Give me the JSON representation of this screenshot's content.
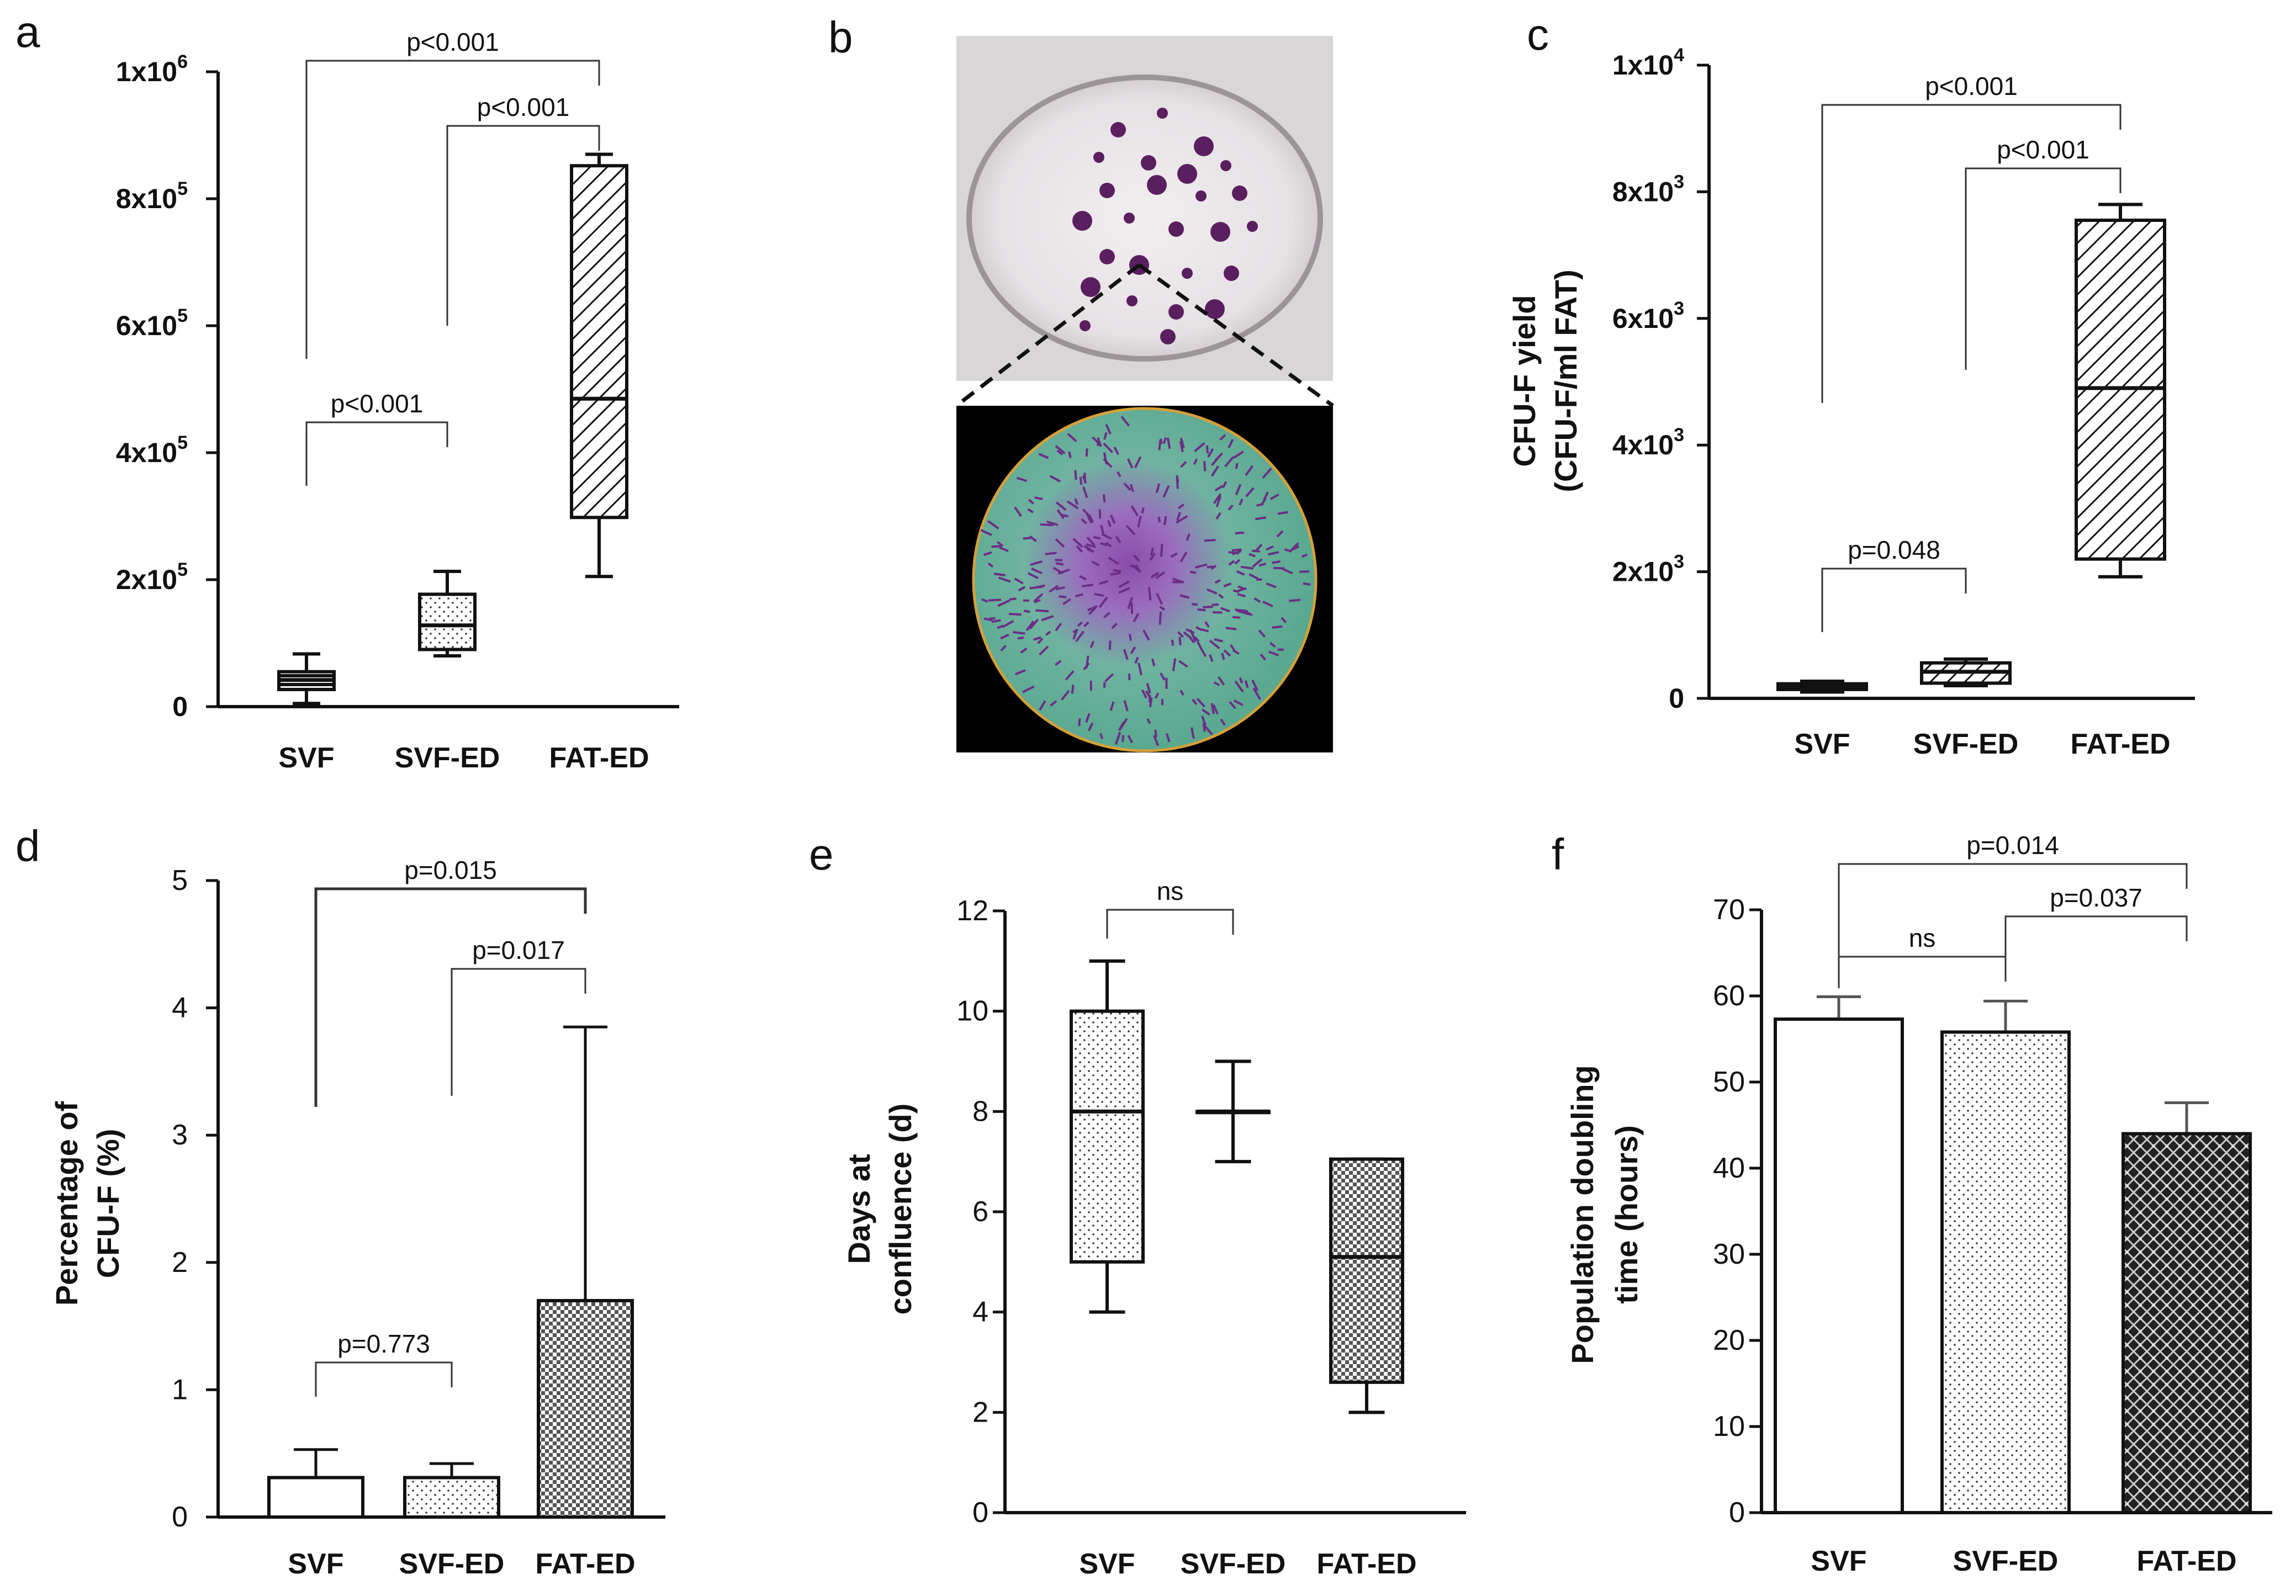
{
  "panels": {
    "a": {
      "label": "a"
    },
    "b": {
      "label": "b"
    },
    "c": {
      "label": "c"
    },
    "d": {
      "label": "d"
    },
    "e": {
      "label": "e"
    },
    "f": {
      "label": "f"
    }
  },
  "chart_data": [
    {
      "id": "a",
      "type": "box",
      "title": "",
      "xlabel": "",
      "ylabel": "",
      "categories": [
        "SVF",
        "SVF-ED",
        "FAT-ED"
      ],
      "ylim": [
        0,
        1000000
      ],
      "yticks": [
        {
          "base": "0",
          "exp": ""
        },
        {
          "base": "2x10",
          "exp": "5"
        },
        {
          "base": "4x10",
          "exp": "5"
        },
        {
          "base": "6x10",
          "exp": "5"
        },
        {
          "base": "8x10",
          "exp": "5"
        },
        {
          "base": "1x10",
          "exp": "6"
        }
      ],
      "boxes": [
        {
          "min": 5000,
          "q1": 27000,
          "median": 42000,
          "q3": 55000,
          "max": 83000,
          "pattern": "stripes"
        },
        {
          "min": 80000,
          "q1": 90000,
          "median": 128000,
          "q3": 177000,
          "max": 213000,
          "pattern": "dots"
        },
        {
          "min": 205000,
          "q1": 298000,
          "median": 485000,
          "q3": 852000,
          "max": 870000,
          "pattern": "hatch"
        }
      ],
      "annotations": [
        {
          "text": "p<0.001",
          "from": 0,
          "to": 1
        },
        {
          "text": "p<0.001",
          "from": 1,
          "to": 2
        },
        {
          "text": "p<0.001",
          "from": 0,
          "to": 2
        }
      ]
    },
    {
      "id": "c",
      "type": "box",
      "title": "",
      "xlabel": "",
      "ylabel_lines": [
        "CFU-F yield",
        "(CFU-F/ml FAT)"
      ],
      "categories": [
        "SVF",
        "SVF-ED",
        "FAT-ED"
      ],
      "ylim": [
        0,
        10000
      ],
      "yticks": [
        {
          "base": "0",
          "exp": ""
        },
        {
          "base": "2x10",
          "exp": "3"
        },
        {
          "base": "4x10",
          "exp": "3"
        },
        {
          "base": "6x10",
          "exp": "3"
        },
        {
          "base": "8x10",
          "exp": "3"
        },
        {
          "base": "1x10",
          "exp": "4"
        }
      ],
      "boxes": [
        {
          "min": 100,
          "q1": 140,
          "median": 190,
          "q3": 230,
          "max": 270,
          "pattern": "hatch"
        },
        {
          "min": 200,
          "q1": 240,
          "median": 420,
          "q3": 560,
          "max": 620,
          "pattern": "hatch"
        },
        {
          "min": 1920,
          "q1": 2200,
          "median": 4900,
          "q3": 7550,
          "max": 7800,
          "pattern": "hatch"
        }
      ],
      "annotations": [
        {
          "text": "p=0.048",
          "from": 0,
          "to": 1
        },
        {
          "text": "p<0.001",
          "from": 1,
          "to": 2
        },
        {
          "text": "p<0.001",
          "from": 0,
          "to": 2
        }
      ]
    },
    {
      "id": "d",
      "type": "bar",
      "title": "",
      "xlabel": "",
      "ylabel_lines": [
        "Percentage of",
        "CFU-F (%)"
      ],
      "categories": [
        "SVF",
        "SVF-ED",
        "FAT-ED"
      ],
      "values": [
        0.31,
        0.31,
        1.7
      ],
      "errors": [
        0.22,
        0.11,
        2.15
      ],
      "ylim": [
        0,
        5
      ],
      "yticks": [
        "0",
        "1",
        "2",
        "3",
        "4",
        "5"
      ],
      "patterns": [
        "none",
        "dots",
        "checker"
      ],
      "annotations": [
        {
          "text": "p=0.773",
          "from": 0,
          "to": 1
        },
        {
          "text": "p=0.017",
          "from": 1,
          "to": 2
        },
        {
          "text": "p=0.015",
          "from": 0,
          "to": 2
        }
      ]
    },
    {
      "id": "e",
      "type": "box",
      "title": "",
      "xlabel": "",
      "ylabel_lines": [
        "Days at",
        "confluence  (d)"
      ],
      "categories": [
        "SVF",
        "SVF-ED",
        "FAT-ED"
      ],
      "ylim": [
        0,
        12
      ],
      "yticks": [
        "0",
        "2",
        "4",
        "6",
        "8",
        "10",
        "12"
      ],
      "boxes": [
        {
          "min": 4,
          "q1": 5,
          "median": 8,
          "q3": 10,
          "max": 11,
          "pattern": "dots"
        },
        {
          "min": 7,
          "q1": 8,
          "median": 8,
          "q3": 8,
          "max": 9,
          "pattern": "none"
        },
        {
          "min": 2,
          "q1": 2.6,
          "median": 5.1,
          "q3": 7.05,
          "max": 7.05,
          "pattern": "checker"
        }
      ],
      "annotations": [
        {
          "text": "ns",
          "from": 0,
          "to": 1
        }
      ]
    },
    {
      "id": "f",
      "type": "bar",
      "title": "",
      "xlabel": "",
      "ylabel_lines": [
        "Population doubling",
        "time (hours)"
      ],
      "categories": [
        "SVF",
        "SVF-ED",
        "FAT-ED"
      ],
      "values": [
        57.3,
        55.8,
        44.0
      ],
      "errors": [
        2.6,
        3.6,
        3.6
      ],
      "ylim": [
        0,
        70
      ],
      "yticks": [
        "0",
        "10",
        "20",
        "30",
        "40",
        "50",
        "60",
        "70"
      ],
      "patterns": [
        "none",
        "dots",
        "crosshatch"
      ],
      "annotations": [
        {
          "text": "ns",
          "from": 0,
          "to": 1
        },
        {
          "text": "p=0.037",
          "from": 1,
          "to": 2
        },
        {
          "text": "p=0.014",
          "from": 0,
          "to": 2
        }
      ]
    }
  ],
  "photo": {
    "id": "b",
    "description_label": "b"
  }
}
